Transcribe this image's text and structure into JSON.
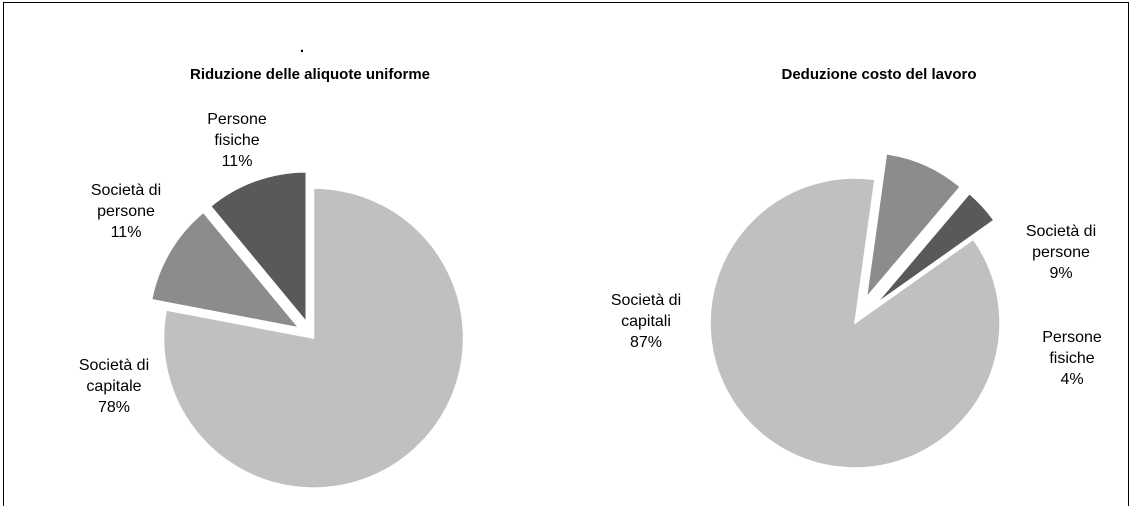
{
  "chart_data": [
    {
      "type": "pie",
      "title": "Riduzione delle aliquote uniforme",
      "title_mark": ".",
      "slices": [
        {
          "label": [
            "Società di",
            "capitale"
          ],
          "value": 78,
          "value_label": "78%",
          "color": "#c0c0c0"
        },
        {
          "label": [
            "Società di",
            "persone"
          ],
          "value": 11,
          "value_label": "11%",
          "color": "#8c8c8c"
        },
        {
          "label": [
            "Persone",
            "fisiche"
          ],
          "value": 11,
          "value_label": "11%",
          "color": "#595959"
        }
      ]
    },
    {
      "type": "pie",
      "title": "Deduzione costo del lavoro",
      "slices": [
        {
          "label": [
            "Società di",
            "capitali"
          ],
          "value": 87,
          "value_label": "87%",
          "color": "#c0c0c0"
        },
        {
          "label": [
            "Società di",
            "persone"
          ],
          "value": 9,
          "value_label": "9%",
          "color": "#8c8c8c"
        },
        {
          "label": [
            "Persone",
            "fisiche"
          ],
          "value": 4,
          "value_label": "4%",
          "color": "#595959"
        }
      ]
    }
  ]
}
